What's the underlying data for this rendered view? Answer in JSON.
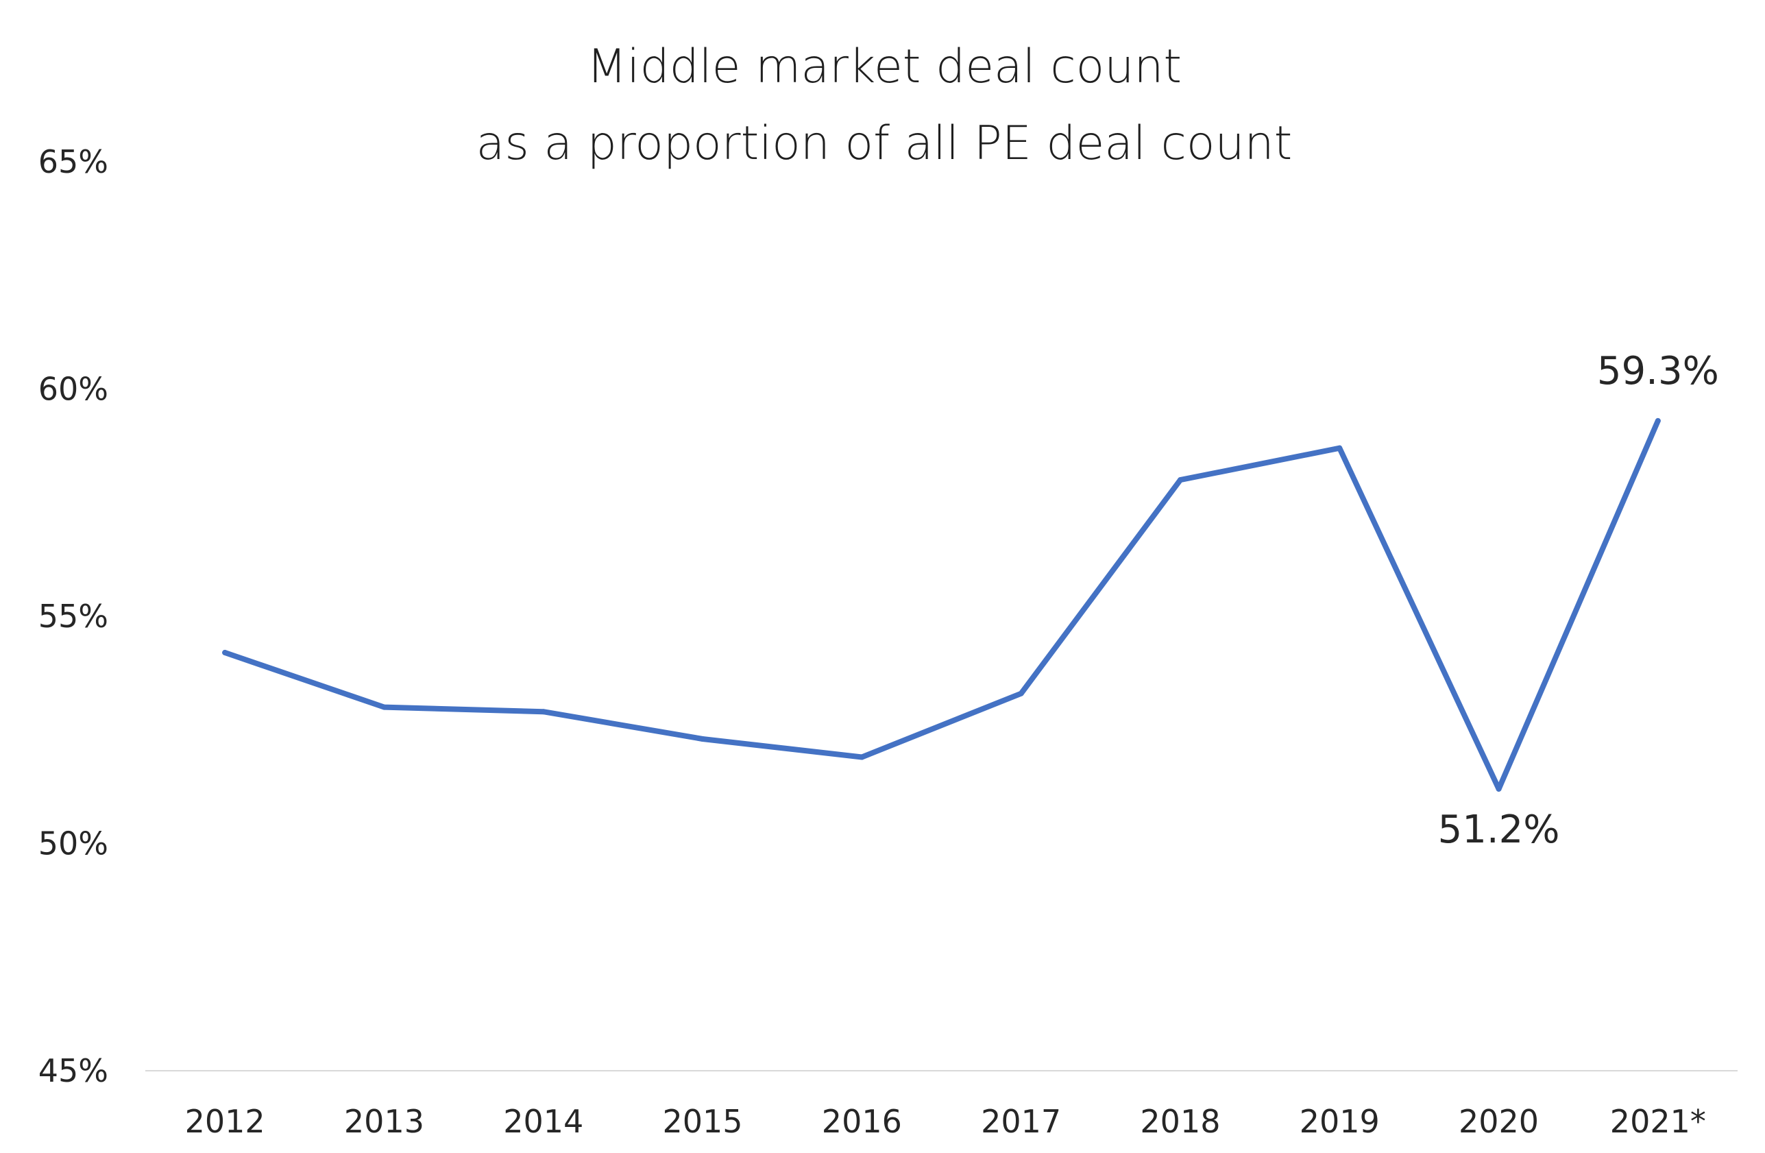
{
  "chart_data": {
    "type": "line",
    "title": [
      "Middle market deal count",
      "as a proportion of all PE deal count"
    ],
    "xlabel": "",
    "ylabel": "",
    "categories": [
      "2012",
      "2013",
      "2014",
      "2015",
      "2016",
      "2017",
      "2018",
      "2019",
      "2020",
      "2021*"
    ],
    "series": [
      {
        "values": [
          54.2,
          53.0,
          52.9,
          52.3,
          51.9,
          53.3,
          58.0,
          58.7,
          51.2,
          59.3
        ],
        "color": "#4472C4"
      }
    ],
    "ylim": [
      45,
      65
    ],
    "yticks": [
      {
        "value": 45,
        "label": "45%"
      },
      {
        "value": 50,
        "label": "50%"
      },
      {
        "value": 55,
        "label": "55%"
      },
      {
        "value": 60,
        "label": "60%"
      },
      {
        "value": 65,
        "label": "65%"
      }
    ],
    "data_labels": [
      {
        "index": 8,
        "text": "51.2%",
        "position": "below"
      },
      {
        "index": 9,
        "text": "59.3%",
        "position": "above"
      }
    ],
    "grid": false,
    "legend": "none"
  }
}
